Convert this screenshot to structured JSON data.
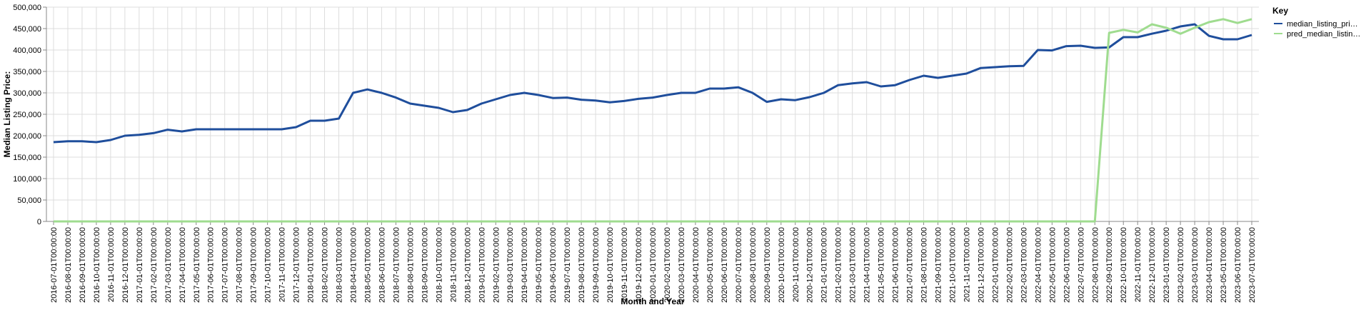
{
  "chart_data": {
    "type": "line",
    "x_label": "Month and Year",
    "y_label": "Median Listing Price:",
    "legend_title": "Key",
    "legend": "top-right",
    "grid": true,
    "categories": [
      "2016-07-01T00:00:00",
      "2016-08-01T00:00:00",
      "2016-09-01T00:00:00",
      "2016-10-01T00:00:00",
      "2016-11-01T00:00:00",
      "2016-12-01T00:00:00",
      "2017-01-01T00:00:00",
      "2017-02-01T00:00:00",
      "2017-03-01T00:00:00",
      "2017-04-01T00:00:00",
      "2017-05-01T00:00:00",
      "2017-06-01T00:00:00",
      "2017-07-01T00:00:00",
      "2017-08-01T00:00:00",
      "2017-09-01T00:00:00",
      "2017-10-01T00:00:00",
      "2017-11-01T00:00:00",
      "2017-12-01T00:00:00",
      "2018-01-01T00:00:00",
      "2018-02-01T00:00:00",
      "2018-03-01T00:00:00",
      "2018-04-01T00:00:00",
      "2018-05-01T00:00:00",
      "2018-06-01T00:00:00",
      "2018-07-01T00:00:00",
      "2018-08-01T00:00:00",
      "2018-09-01T00:00:00",
      "2018-10-01T00:00:00",
      "2018-11-01T00:00:00",
      "2018-12-01T00:00:00",
      "2019-01-01T00:00:00",
      "2019-02-01T00:00:00",
      "2019-03-01T00:00:00",
      "2019-04-01T00:00:00",
      "2019-05-01T00:00:00",
      "2019-06-01T00:00:00",
      "2019-07-01T00:00:00",
      "2019-08-01T00:00:00",
      "2019-09-01T00:00:00",
      "2019-10-01T00:00:00",
      "2019-11-01T00:00:00",
      "2019-12-01T00:00:00",
      "2020-01-01T00:00:00",
      "2020-02-01T00:00:00",
      "2020-03-01T00:00:00",
      "2020-04-01T00:00:00",
      "2020-05-01T00:00:00",
      "2020-06-01T00:00:00",
      "2020-07-01T00:00:00",
      "2020-08-01T00:00:00",
      "2020-09-01T00:00:00",
      "2020-10-01T00:00:00",
      "2020-11-01T00:00:00",
      "2020-12-01T00:00:00",
      "2021-01-01T00:00:00",
      "2021-02-01T00:00:00",
      "2021-03-01T00:00:00",
      "2021-04-01T00:00:00",
      "2021-05-01T00:00:00",
      "2021-06-01T00:00:00",
      "2021-07-01T00:00:00",
      "2021-08-01T00:00:00",
      "2021-09-01T00:00:00",
      "2021-10-01T00:00:00",
      "2021-11-01T00:00:00",
      "2021-12-01T00:00:00",
      "2022-01-01T00:00:00",
      "2022-02-01T00:00:00",
      "2022-03-01T00:00:00",
      "2022-04-01T00:00:00",
      "2022-05-01T00:00:00",
      "2022-06-01T00:00:00",
      "2022-07-01T00:00:00",
      "2022-08-01T00:00:00",
      "2022-09-01T00:00:00",
      "2022-10-01T00:00:00",
      "2022-11-01T00:00:00",
      "2022-12-01T00:00:00",
      "2023-01-01T00:00:00",
      "2023-02-01T00:00:00",
      "2023-03-01T00:00:00",
      "2023-04-01T00:00:00",
      "2023-05-01T00:00:00",
      "2023-06-01T00:00:00",
      "2023-07-01T00:00:00"
    ],
    "series": [
      {
        "name": "median_listing_pri…",
        "color": "#1f4e9c",
        "values": [
          185000,
          187000,
          187000,
          185000,
          190000,
          200000,
          202000,
          206000,
          214000,
          210000,
          215000,
          215000,
          215000,
          215000,
          215000,
          215000,
          215000,
          220000,
          235000,
          235000,
          240000,
          300000,
          308000,
          300000,
          289000,
          275000,
          270000,
          265000,
          255000,
          260000,
          275000,
          285000,
          295000,
          300000,
          295000,
          288000,
          289000,
          284000,
          282000,
          278000,
          281000,
          286000,
          289000,
          295000,
          300000,
          300000,
          310000,
          310000,
          313000,
          300000,
          279000,
          285000,
          283000,
          290000,
          300000,
          318000,
          322000,
          325000,
          315000,
          318000,
          330000,
          340000,
          335000,
          340000,
          345000,
          358000,
          360000,
          362000,
          363000,
          400000,
          399000,
          409000,
          410000,
          405000,
          406000,
          430000,
          430000,
          438000,
          445000,
          455000,
          460000,
          433000,
          425000,
          425000,
          435000
        ]
      },
      {
        "name": "pred_median_listin…",
        "color": "#9fdc8f",
        "values": [
          0,
          0,
          0,
          0,
          0,
          0,
          0,
          0,
          0,
          0,
          0,
          0,
          0,
          0,
          0,
          0,
          0,
          0,
          0,
          0,
          0,
          0,
          0,
          0,
          0,
          0,
          0,
          0,
          0,
          0,
          0,
          0,
          0,
          0,
          0,
          0,
          0,
          0,
          0,
          0,
          0,
          0,
          0,
          0,
          0,
          0,
          0,
          0,
          0,
          0,
          0,
          0,
          0,
          0,
          0,
          0,
          0,
          0,
          0,
          0,
          0,
          0,
          0,
          0,
          0,
          0,
          0,
          0,
          0,
          0,
          0,
          0,
          0,
          0,
          440000,
          447000,
          441000,
          460000,
          452000,
          438000,
          452000,
          465000,
          472000,
          463000,
          472000
        ]
      }
    ],
    "ylim": [
      0,
      500000
    ],
    "yticks": [
      0,
      {
        "value": 50000,
        "label": "50,000"
      },
      {
        "value": 100000,
        "label": "100,000"
      },
      {
        "value": 150000,
        "label": "150,000"
      },
      {
        "value": 200000,
        "label": "200,000"
      },
      {
        "value": 250000,
        "label": "250,000"
      },
      {
        "value": 300000,
        "label": "300,000"
      },
      {
        "value": 350000,
        "label": "350,000"
      },
      {
        "value": 400000,
        "label": "400,000"
      },
      {
        "value": 450000,
        "label": "450,000"
      },
      {
        "value": 500000,
        "label": "500,000"
      }
    ]
  }
}
